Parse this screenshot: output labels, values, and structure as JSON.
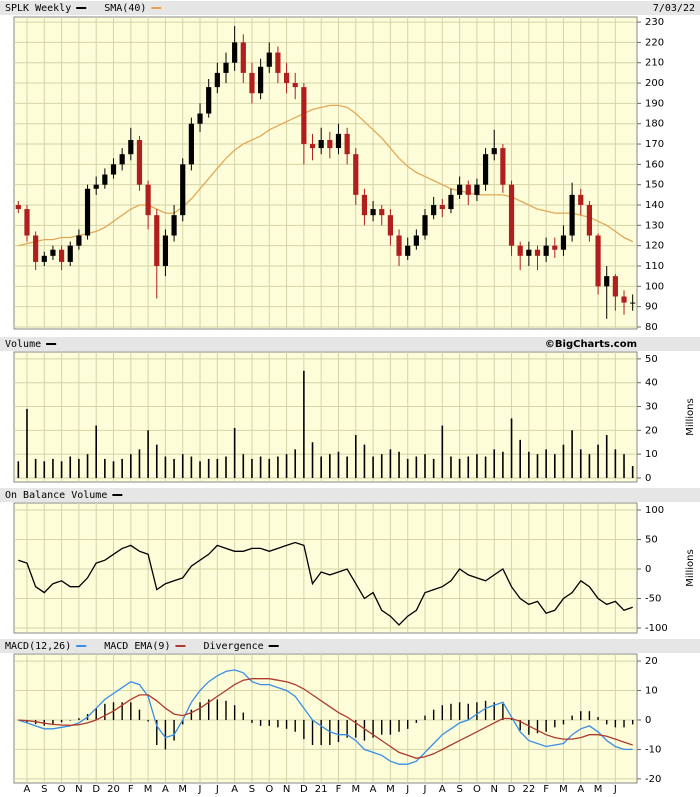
{
  "chart_data": [
    {
      "type": "candlestick",
      "name": "SPLK Weekly",
      "date": "7/03/22",
      "color": "#000000",
      "down_color": "#b01e1e",
      "open": [
        140,
        138,
        125,
        112,
        115,
        118,
        112,
        120,
        125,
        148,
        150,
        155,
        160,
        165,
        172,
        150,
        135,
        110,
        125,
        135,
        160,
        180,
        185,
        198,
        205,
        210,
        220,
        205,
        195,
        208,
        215,
        205,
        200,
        198,
        170,
        168,
        172,
        168,
        175,
        165,
        145,
        135,
        138,
        135,
        125,
        115,
        120,
        125,
        135,
        140,
        138,
        145,
        150,
        145,
        150,
        165,
        168,
        150,
        120,
        115,
        118,
        115,
        120,
        118,
        125,
        145,
        140,
        125,
        100,
        105,
        95,
        92
      ],
      "high": [
        142,
        140,
        127,
        117,
        120,
        120,
        122,
        128,
        150,
        154,
        158,
        163,
        168,
        178,
        174,
        152,
        138,
        128,
        140,
        163,
        183,
        190,
        202,
        210,
        215,
        228,
        224,
        210,
        212,
        220,
        218,
        210,
        205,
        200,
        175,
        178,
        176,
        180,
        178,
        168,
        148,
        142,
        140,
        138,
        128,
        124,
        128,
        138,
        144,
        143,
        148,
        154,
        152,
        153,
        168,
        177,
        170,
        152,
        122,
        122,
        120,
        124,
        124,
        130,
        151,
        148,
        142,
        126,
        110,
        106,
        98,
        96
      ],
      "low": [
        136,
        122,
        108,
        110,
        113,
        108,
        110,
        118,
        123,
        145,
        148,
        153,
        157,
        162,
        147,
        128,
        94,
        105,
        122,
        132,
        157,
        176,
        183,
        195,
        200,
        206,
        200,
        190,
        192,
        205,
        200,
        195,
        192,
        160,
        162,
        165,
        163,
        165,
        160,
        140,
        130,
        132,
        130,
        120,
        110,
        113,
        118,
        123,
        133,
        134,
        136,
        143,
        140,
        142,
        147,
        162,
        146,
        115,
        108,
        110,
        108,
        112,
        114,
        115,
        122,
        135,
        122,
        96,
        84,
        88,
        86,
        88
      ],
      "close": [
        138,
        125,
        112,
        115,
        118,
        112,
        120,
        125,
        148,
        150,
        155,
        160,
        165,
        172,
        150,
        135,
        110,
        125,
        135,
        160,
        180,
        185,
        198,
        205,
        210,
        220,
        205,
        195,
        208,
        215,
        205,
        200,
        198,
        170,
        168,
        172,
        168,
        175,
        165,
        145,
        135,
        138,
        135,
        125,
        115,
        120,
        125,
        135,
        140,
        138,
        145,
        150,
        145,
        150,
        165,
        168,
        150,
        120,
        115,
        118,
        115,
        120,
        118,
        125,
        145,
        140,
        125,
        100,
        105,
        95,
        92,
        92
      ],
      "series": [
        {
          "name": "SMA(40)",
          "color": "#e3a857",
          "values": [
            120,
            121,
            122,
            123,
            123,
            124,
            124,
            125,
            126,
            127,
            129,
            132,
            135,
            138,
            140,
            140,
            138,
            136,
            136,
            139,
            143,
            148,
            153,
            158,
            163,
            167,
            170,
            172,
            174,
            177,
            179,
            181,
            183,
            185,
            187,
            188,
            189,
            189,
            188,
            185,
            181,
            177,
            173,
            168,
            163,
            159,
            156,
            154,
            152,
            150,
            148,
            147,
            146,
            145,
            145,
            145,
            145,
            144,
            142,
            140,
            138,
            137,
            136,
            136,
            136,
            135,
            134,
            132,
            130,
            127,
            124,
            122
          ]
        }
      ],
      "ylim": [
        79,
        232.5
      ],
      "yticks": [
        80,
        90,
        100,
        110,
        120,
        130,
        140,
        150,
        160,
        170,
        180,
        190,
        200,
        210,
        220,
        230
      ],
      "grid": true
    },
    {
      "type": "bar",
      "name": "Volume",
      "axis_label": "Millions",
      "credit": "©BigCharts.com",
      "color": "#000000",
      "values": [
        7,
        29,
        8,
        7,
        8,
        7,
        9,
        8,
        10,
        22,
        8,
        7,
        8,
        10,
        12,
        20,
        14,
        9,
        8,
        10,
        9,
        7,
        8,
        8,
        9,
        21,
        10,
        8,
        9,
        8,
        9,
        10,
        12,
        45,
        15,
        9,
        10,
        11,
        9,
        18,
        14,
        9,
        10,
        12,
        11,
        8,
        9,
        10,
        8,
        22,
        9,
        8,
        9,
        10,
        9,
        12,
        11,
        25,
        16,
        11,
        10,
        12,
        10,
        14,
        20,
        12,
        10,
        14,
        18,
        12,
        10,
        5
      ],
      "ylim": [
        -1.7,
        52.9
      ],
      "yticks": [
        0,
        10,
        20,
        30,
        40,
        50
      ],
      "grid": true
    },
    {
      "type": "line",
      "name": "On Balance Volume",
      "axis_label": "Millions",
      "color": "#000000",
      "values": [
        15,
        10,
        -30,
        -40,
        -25,
        -20,
        -30,
        -30,
        -15,
        10,
        15,
        25,
        35,
        40,
        30,
        25,
        -35,
        -25,
        -20,
        -15,
        5,
        15,
        25,
        40,
        35,
        30,
        30,
        35,
        35,
        30,
        35,
        40,
        45,
        40,
        -25,
        -5,
        -10,
        -5,
        0,
        -25,
        -50,
        -40,
        -70,
        -80,
        -95,
        -80,
        -70,
        -40,
        -35,
        -30,
        -20,
        0,
        -10,
        -15,
        -20,
        -10,
        0,
        -30,
        -50,
        -60,
        -55,
        -75,
        -70,
        -50,
        -40,
        -20,
        -30,
        -50,
        -60,
        -55,
        -70,
        -65
      ],
      "ylim": [
        -108.5,
        111.9
      ],
      "yticks": [
        -100,
        -50,
        0,
        50,
        100
      ],
      "grid": true
    },
    {
      "type": "macd",
      "categories": [
        null,
        "A",
        null,
        "S",
        null,
        "O",
        null,
        "N",
        null,
        "D",
        null,
        "20",
        null,
        "F",
        null,
        "M",
        null,
        "A",
        null,
        "M",
        null,
        "J",
        null,
        "J",
        null,
        "A",
        null,
        "S",
        null,
        "O",
        null,
        "N",
        null,
        "D",
        null,
        "21",
        null,
        "F",
        null,
        "M",
        null,
        "A",
        null,
        "M",
        null,
        "J",
        null,
        "J",
        null,
        "A",
        null,
        "S",
        null,
        "O",
        null,
        "N",
        null,
        "D",
        null,
        "22",
        null,
        "F",
        null,
        "M",
        null,
        "A",
        null,
        "M",
        null,
        "J",
        null,
        null
      ],
      "series": [
        {
          "name": "MACD(12,26)",
          "color": "#3a8ee6",
          "values": [
            0,
            -1,
            -2,
            -3,
            -3,
            -2.5,
            -2,
            -1,
            1,
            4,
            7,
            9,
            11,
            13,
            12,
            8,
            -2,
            -6,
            -5,
            0,
            6,
            10,
            13,
            15,
            16.5,
            17,
            16,
            13,
            12,
            12,
            11,
            10,
            8,
            4,
            0,
            -2,
            -4,
            -5,
            -5,
            -7,
            -10,
            -11,
            -12,
            -14,
            -15,
            -15,
            -14,
            -11,
            -8,
            -5,
            -3,
            -1,
            0,
            2,
            4,
            5,
            6,
            1,
            -4,
            -7,
            -8,
            -9,
            -8.5,
            -8,
            -5,
            -3,
            -2,
            -4,
            -7,
            -9,
            -10,
            -10
          ]
        },
        {
          "name": "MACD EMA(9)",
          "color": "#b03a2e",
          "values": [
            0,
            -0.2,
            -0.6,
            -1.1,
            -1.5,
            -1.7,
            -1.8,
            -1.6,
            -1,
            0,
            1.5,
            3,
            5,
            7,
            8.5,
            8.5,
            6.5,
            4,
            2,
            1.5,
            2.5,
            4,
            6,
            8,
            10,
            12,
            13.5,
            14,
            14,
            14,
            13.5,
            13,
            12,
            10.5,
            8.5,
            6.5,
            4.5,
            2.5,
            1,
            -1,
            -3,
            -5,
            -7,
            -9,
            -11,
            -12,
            -13,
            -12.5,
            -11.5,
            -10,
            -8.5,
            -7,
            -5.5,
            -4,
            -2.5,
            -1,
            0.5,
            0.5,
            -0.5,
            -2,
            -3.5,
            -5,
            -6,
            -6.5,
            -6.5,
            -6,
            -5,
            -5,
            -5.5,
            -6.5,
            -7.5,
            -8.5
          ]
        },
        {
          "name": "Divergence",
          "color": "#000000",
          "values": [
            0,
            -0.8,
            -1.4,
            -1.9,
            -1.5,
            -0.8,
            -0.2,
            0.6,
            2,
            4,
            5.5,
            6,
            6,
            6,
            3.5,
            -0.5,
            -8.5,
            -10,
            -7,
            -1.5,
            3.5,
            6,
            7,
            7,
            6.5,
            5,
            2.5,
            -1,
            -2,
            -2,
            -2.5,
            -3,
            -4,
            -6.5,
            -8.5,
            -8.5,
            -8.5,
            -7.5,
            -6,
            -6,
            -7,
            -6,
            -5,
            -5,
            -4,
            -3,
            -1,
            1.5,
            3.5,
            5,
            5.5,
            6,
            5.5,
            6,
            6.5,
            6,
            5.5,
            0.5,
            -3.5,
            -5,
            -4.5,
            -4,
            -2.5,
            -1.5,
            1.5,
            3,
            3,
            1,
            -1.5,
            -2.5,
            -2.5,
            -1.5
          ]
        }
      ],
      "ylim": [
        -21.4,
        22.4
      ],
      "yticks": [
        -20,
        -10,
        0,
        10,
        20
      ],
      "grid": true
    }
  ]
}
